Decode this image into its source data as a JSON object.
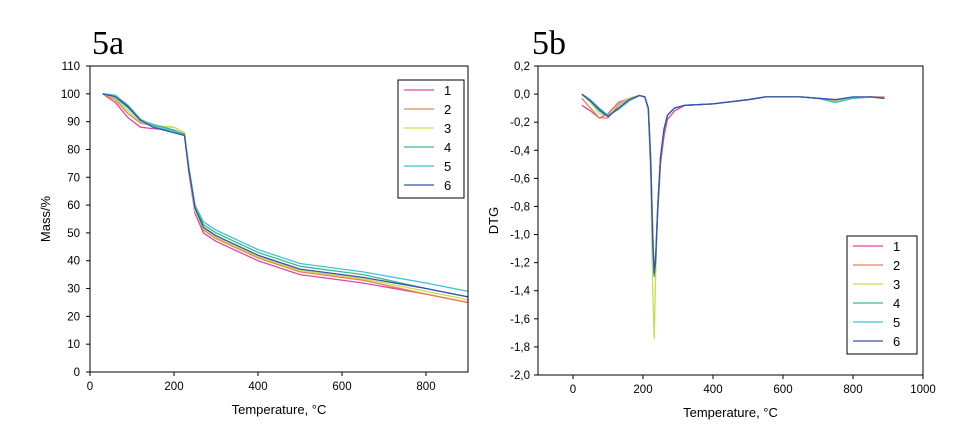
{
  "colors": {
    "1": "#e0479e",
    "2": "#e8804f",
    "3": "#c9dc55",
    "4": "#3fb98b",
    "5": "#3fc4d6",
    "6": "#3a4fb0"
  },
  "chart_data": [
    {
      "panel": "5a",
      "type": "line",
      "xlabel": "Temperature, °C",
      "ylabel": "Mass/%",
      "xlim": [
        0,
        900
      ],
      "ylim": [
        0,
        110
      ],
      "xticks": [
        "0",
        "200",
        "400",
        "600",
        "800"
      ],
      "yticks": [
        "0",
        "10",
        "20",
        "30",
        "40",
        "50",
        "60",
        "70",
        "80",
        "90",
        "100",
        "110"
      ],
      "legend_position": "top-right",
      "series": [
        {
          "name": "1",
          "x": [
            30,
            60,
            90,
            120,
            150,
            200,
            225,
            235,
            250,
            270,
            300,
            400,
            500,
            650,
            800,
            900
          ],
          "y": [
            100,
            97,
            91.5,
            88,
            87.5,
            87,
            85,
            72,
            57,
            50,
            47,
            40,
            35,
            32,
            28,
            25
          ]
        },
        {
          "name": "2",
          "x": [
            30,
            60,
            90,
            120,
            150,
            200,
            225,
            235,
            250,
            270,
            300,
            400,
            500,
            650,
            800,
            900
          ],
          "y": [
            100,
            98,
            93,
            89.5,
            88.5,
            88,
            86,
            73,
            58,
            51,
            48,
            41,
            36,
            33,
            28,
            25
          ]
        },
        {
          "name": "3",
          "x": [
            30,
            60,
            90,
            120,
            150,
            200,
            225,
            235,
            250,
            270,
            300,
            400,
            500,
            650,
            800,
            900
          ],
          "y": [
            100,
            98.5,
            94,
            90,
            88.5,
            88,
            86,
            73,
            58,
            51.5,
            48.5,
            41.5,
            36.5,
            33.5,
            29,
            26
          ]
        },
        {
          "name": "4",
          "x": [
            30,
            60,
            90,
            120,
            150,
            200,
            225,
            235,
            250,
            270,
            300,
            400,
            500,
            650,
            800,
            900
          ],
          "y": [
            100,
            99,
            95,
            90.5,
            89,
            87,
            85.5,
            74,
            60,
            53,
            50,
            43,
            38,
            35,
            30,
            27
          ]
        },
        {
          "name": "5",
          "x": [
            30,
            60,
            90,
            120,
            150,
            200,
            225,
            235,
            250,
            270,
            300,
            400,
            500,
            650,
            800,
            900
          ],
          "y": [
            100,
            99.5,
            96,
            91,
            88.5,
            86.5,
            85,
            74,
            60,
            54,
            51,
            44,
            39,
            36,
            32,
            29
          ]
        },
        {
          "name": "6",
          "x": [
            30,
            60,
            90,
            120,
            150,
            200,
            225,
            235,
            250,
            270,
            300,
            400,
            500,
            650,
            800,
            900
          ],
          "y": [
            100,
            99,
            95.5,
            90.5,
            88,
            86,
            85,
            73,
            59,
            52,
            49,
            42,
            37,
            34,
            30,
            27
          ]
        }
      ]
    },
    {
      "panel": "5b",
      "type": "line",
      "xlabel": "Temperature, °C",
      "ylabel": "DTG",
      "xlim": [
        -100,
        1000
      ],
      "ylim": [
        -2.0,
        0.2
      ],
      "xticks": [
        "0",
        "200",
        "400",
        "600",
        "800",
        "1000"
      ],
      "yticks": [
        "-2,0",
        "-1,8",
        "-1,6",
        "-1,4",
        "-1,2",
        "-1,0",
        "-0,8",
        "-0,6",
        "-0,4",
        "-0,2",
        "0,0",
        "0,2"
      ],
      "legend_position": "bottom-right",
      "series": [
        {
          "name": "1",
          "x": [
            25,
            50,
            75,
            100,
            130,
            160,
            190,
            205,
            215,
            222,
            228,
            232,
            236,
            242,
            250,
            260,
            270,
            290,
            320,
            400,
            500,
            550,
            650,
            700,
            750,
            800,
            850,
            890
          ],
          "y": [
            -0.08,
            -0.12,
            -0.17,
            -0.14,
            -0.06,
            -0.03,
            -0.01,
            -0.02,
            -0.1,
            -0.45,
            -1.0,
            -1.25,
            -1.2,
            -0.85,
            -0.5,
            -0.3,
            -0.18,
            -0.12,
            -0.08,
            -0.07,
            -0.04,
            -0.02,
            -0.02,
            -0.03,
            -0.04,
            -0.03,
            -0.02,
            -0.03
          ]
        },
        {
          "name": "2",
          "x": [
            25,
            50,
            75,
            100,
            130,
            160,
            190,
            205,
            215,
            222,
            228,
            232,
            236,
            242,
            250,
            260,
            270,
            290,
            320,
            400,
            500,
            550,
            650,
            700,
            750,
            800,
            850,
            890
          ],
          "y": [
            -0.03,
            -0.1,
            -0.17,
            -0.17,
            -0.08,
            -0.03,
            -0.01,
            -0.02,
            -0.1,
            -0.45,
            -1.05,
            -1.3,
            -1.2,
            -0.8,
            -0.45,
            -0.25,
            -0.15,
            -0.1,
            -0.08,
            -0.07,
            -0.04,
            -0.02,
            -0.02,
            -0.03,
            -0.04,
            -0.03,
            -0.02,
            -0.02
          ]
        },
        {
          "name": "3",
          "x": [
            25,
            50,
            75,
            100,
            130,
            160,
            190,
            205,
            215,
            222,
            228,
            232,
            236,
            242,
            250,
            260,
            270,
            290,
            320,
            400,
            500,
            550,
            650,
            700,
            750,
            800,
            850,
            890
          ],
          "y": [
            0.0,
            -0.06,
            -0.14,
            -0.15,
            -0.07,
            -0.03,
            -0.01,
            -0.02,
            -0.12,
            -0.6,
            -1.4,
            -1.74,
            -1.3,
            -0.8,
            -0.45,
            -0.25,
            -0.15,
            -0.1,
            -0.08,
            -0.07,
            -0.04,
            -0.02,
            -0.02,
            -0.03,
            -0.05,
            -0.03,
            -0.02,
            -0.03
          ]
        },
        {
          "name": "4",
          "x": [
            25,
            50,
            75,
            100,
            130,
            160,
            190,
            205,
            215,
            222,
            228,
            232,
            236,
            242,
            250,
            260,
            270,
            290,
            320,
            400,
            500,
            550,
            650,
            700,
            750,
            800,
            850,
            890
          ],
          "y": [
            0.0,
            -0.05,
            -0.12,
            -0.16,
            -0.1,
            -0.04,
            -0.01,
            -0.02,
            -0.1,
            -0.5,
            -1.1,
            -1.3,
            -1.2,
            -0.8,
            -0.45,
            -0.25,
            -0.15,
            -0.1,
            -0.08,
            -0.07,
            -0.04,
            -0.02,
            -0.02,
            -0.03,
            -0.06,
            -0.03,
            -0.02,
            -0.03
          ]
        },
        {
          "name": "5",
          "x": [
            25,
            50,
            75,
            100,
            130,
            160,
            190,
            205,
            215,
            222,
            228,
            232,
            236,
            242,
            250,
            260,
            270,
            290,
            320,
            400,
            500,
            550,
            650,
            700,
            750,
            800,
            850,
            890
          ],
          "y": [
            0.0,
            -0.04,
            -0.1,
            -0.15,
            -0.11,
            -0.05,
            -0.01,
            -0.02,
            -0.1,
            -0.45,
            -1.0,
            -1.25,
            -1.15,
            -0.8,
            -0.45,
            -0.25,
            -0.15,
            -0.1,
            -0.08,
            -0.07,
            -0.04,
            -0.02,
            -0.02,
            -0.03,
            -0.06,
            -0.03,
            -0.02,
            -0.03
          ]
        },
        {
          "name": "6",
          "x": [
            25,
            50,
            75,
            100,
            130,
            160,
            190,
            205,
            215,
            222,
            228,
            232,
            236,
            242,
            250,
            260,
            270,
            290,
            320,
            400,
            500,
            550,
            650,
            700,
            750,
            800,
            850,
            890
          ],
          "y": [
            0.0,
            -0.05,
            -0.11,
            -0.16,
            -0.1,
            -0.04,
            -0.01,
            -0.02,
            -0.1,
            -0.48,
            -1.05,
            -1.28,
            -1.18,
            -0.82,
            -0.45,
            -0.25,
            -0.15,
            -0.1,
            -0.08,
            -0.07,
            -0.04,
            -0.02,
            -0.02,
            -0.03,
            -0.04,
            -0.02,
            -0.02,
            -0.03
          ]
        }
      ]
    }
  ]
}
